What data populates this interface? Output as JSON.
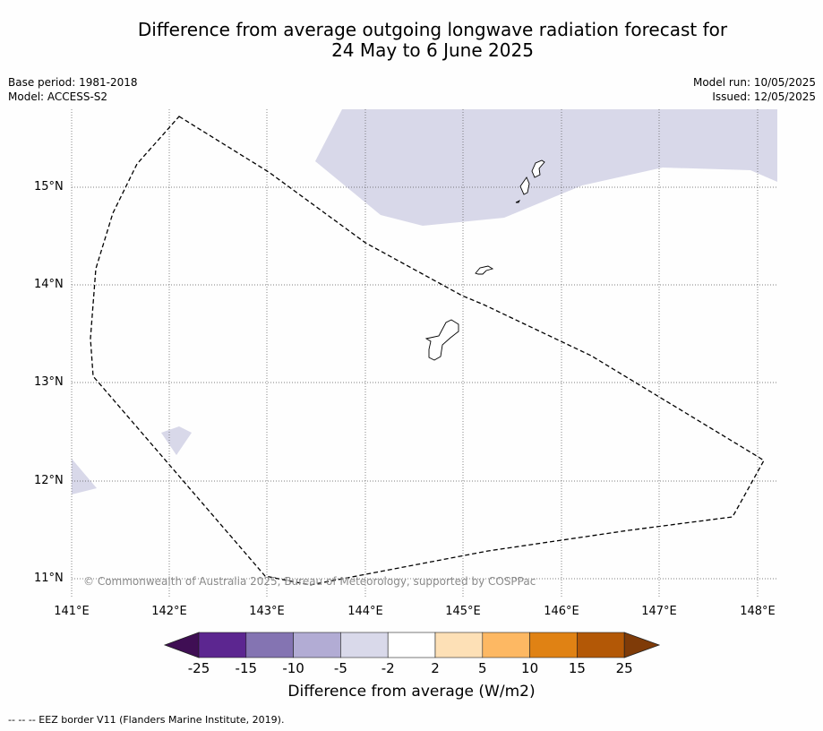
{
  "title_line1": "Difference from average outgoing longwave radiation forecast for",
  "title_line2": "24 May to 6 June 2025",
  "base_period": "Base period: 1981-2018",
  "model": "Model: ACCESS-S2",
  "model_run": "Model run: 10/05/2025",
  "issued": "Issued: 12/05/2025",
  "lat_labels": [
    "15°N",
    "14°N",
    "13°N",
    "12°N",
    "11°N"
  ],
  "lon_labels": [
    "141°E",
    "142°E",
    "143°E",
    "144°E",
    "145°E",
    "146°E",
    "147°E",
    "148°E"
  ],
  "copyright": "© Commonwealth of Australia 2025, Bureau of Meteorology, supported by COSPPac",
  "colorbar": {
    "ticks": [
      "-25",
      "-15",
      "-10",
      "-5",
      "-2",
      "2",
      "5",
      "10",
      "15",
      "25"
    ],
    "colors": [
      "#3f0e54",
      "#5c2690",
      "#8474b2",
      "#b2acd4",
      "#d9d9ea",
      "#ffffff",
      "#fde0b6",
      "#fdb863",
      "#e08214",
      "#b35806",
      "#7f3b08"
    ],
    "label": "Difference from average (W/m2)"
  },
  "footnote": "--  --  -- EEZ border V11 (Flanders Marine Institute, 2019)."
}
